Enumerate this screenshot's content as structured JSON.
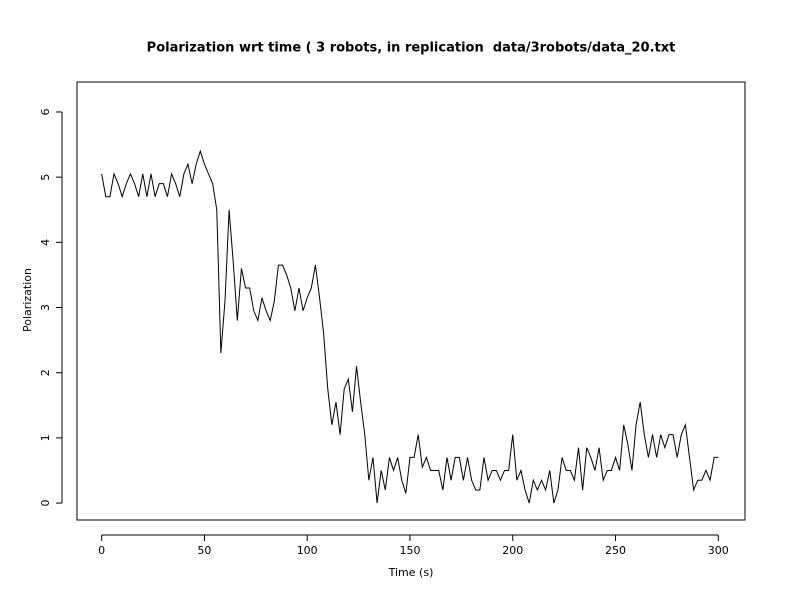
{
  "chart_data": {
    "type": "line",
    "title": "Polarization wrt time ( 3 robots, in replication  data/3robots/data_20.txt",
    "x_label": "Time (s)",
    "y_label": "Polarization",
    "x": [
      0,
      2,
      4,
      6,
      8,
      10,
      12,
      14,
      16,
      18,
      20,
      22,
      24,
      26,
      28,
      30,
      32,
      34,
      36,
      38,
      40,
      42,
      44,
      46,
      48,
      50,
      52,
      54,
      56,
      58,
      60,
      62,
      64,
      66,
      68,
      70,
      72,
      74,
      76,
      78,
      80,
      82,
      84,
      86,
      88,
      90,
      92,
      94,
      96,
      98,
      100,
      102,
      104,
      106,
      108,
      110,
      112,
      114,
      116,
      118,
      120,
      122,
      124,
      126,
      128,
      130,
      132,
      134,
      136,
      138,
      140,
      142,
      144,
      146,
      148,
      150,
      152,
      154,
      156,
      158,
      160,
      162,
      164,
      166,
      168,
      170,
      172,
      174,
      176,
      178,
      180,
      182,
      184,
      186,
      188,
      190,
      192,
      194,
      196,
      198,
      200,
      202,
      204,
      206,
      208,
      210,
      212,
      214,
      216,
      218,
      220,
      222,
      224,
      226,
      228,
      230,
      232,
      234,
      236,
      238,
      240,
      242,
      244,
      246,
      248,
      250,
      252,
      254,
      256,
      258,
      260,
      262,
      264,
      266,
      268,
      270,
      272,
      274,
      276,
      278,
      280,
      282,
      284,
      286,
      288,
      290,
      292,
      294,
      296,
      298,
      300
    ],
    "series": [
      {
        "color": "#000000",
        "values": [
          5.05,
          4.7,
          4.7,
          5.05,
          4.9,
          4.7,
          4.9,
          5.05,
          4.9,
          4.7,
          5.05,
          4.7,
          5.05,
          4.7,
          4.9,
          4.9,
          4.7,
          5.05,
          4.9,
          4.7,
          5.05,
          5.2,
          4.9,
          5.2,
          5.4,
          5.2,
          5.05,
          4.9,
          4.5,
          2.3,
          3.1,
          4.5,
          3.7,
          2.8,
          3.6,
          3.3,
          3.3,
          2.95,
          2.8,
          3.15,
          2.95,
          2.8,
          3.1,
          3.65,
          3.65,
          3.5,
          3.3,
          2.95,
          3.3,
          2.95,
          3.15,
          3.3,
          3.65,
          3.15,
          2.6,
          1.75,
          1.2,
          1.55,
          1.05,
          1.75,
          1.9,
          1.4,
          2.1,
          1.55,
          1.05,
          0.35,
          0.7,
          0,
          0.5,
          0.2,
          0.7,
          0.5,
          0.7,
          0.35,
          0.15,
          0.7,
          0.7,
          1.05,
          0.55,
          0.7,
          0.5,
          0.5,
          0.5,
          0.2,
          0.7,
          0.35,
          0.7,
          0.7,
          0.35,
          0.7,
          0.35,
          0.2,
          0.2,
          0.7,
          0.35,
          0.5,
          0.5,
          0.35,
          0.5,
          0.5,
          1.05,
          0.35,
          0.5,
          0.2,
          0,
          0.35,
          0.2,
          0.35,
          0.2,
          0.5,
          0,
          0.2,
          0.7,
          0.5,
          0.5,
          0.35,
          0.85,
          0.2,
          0.85,
          0.7,
          0.5,
          0.85,
          0.35,
          0.5,
          0.5,
          0.7,
          0.5,
          1.2,
          0.9,
          0.5,
          1.2,
          1.55,
          1.05,
          0.7,
          1.05,
          0.7,
          1.05,
          0.85,
          1.05,
          1.05,
          0.7,
          1.05,
          1.2,
          0.7,
          0.2,
          0.35,
          0.35,
          0.5,
          0.35,
          0.7,
          0.7
        ]
      }
    ],
    "xlim": [
      -12,
      313
    ],
    "ylim": [
      -0.26,
      6.46
    ],
    "xticks": [
      0,
      50,
      100,
      150,
      200,
      250,
      300
    ],
    "yticks": [
      0,
      1,
      2,
      3,
      4,
      5,
      6
    ]
  }
}
